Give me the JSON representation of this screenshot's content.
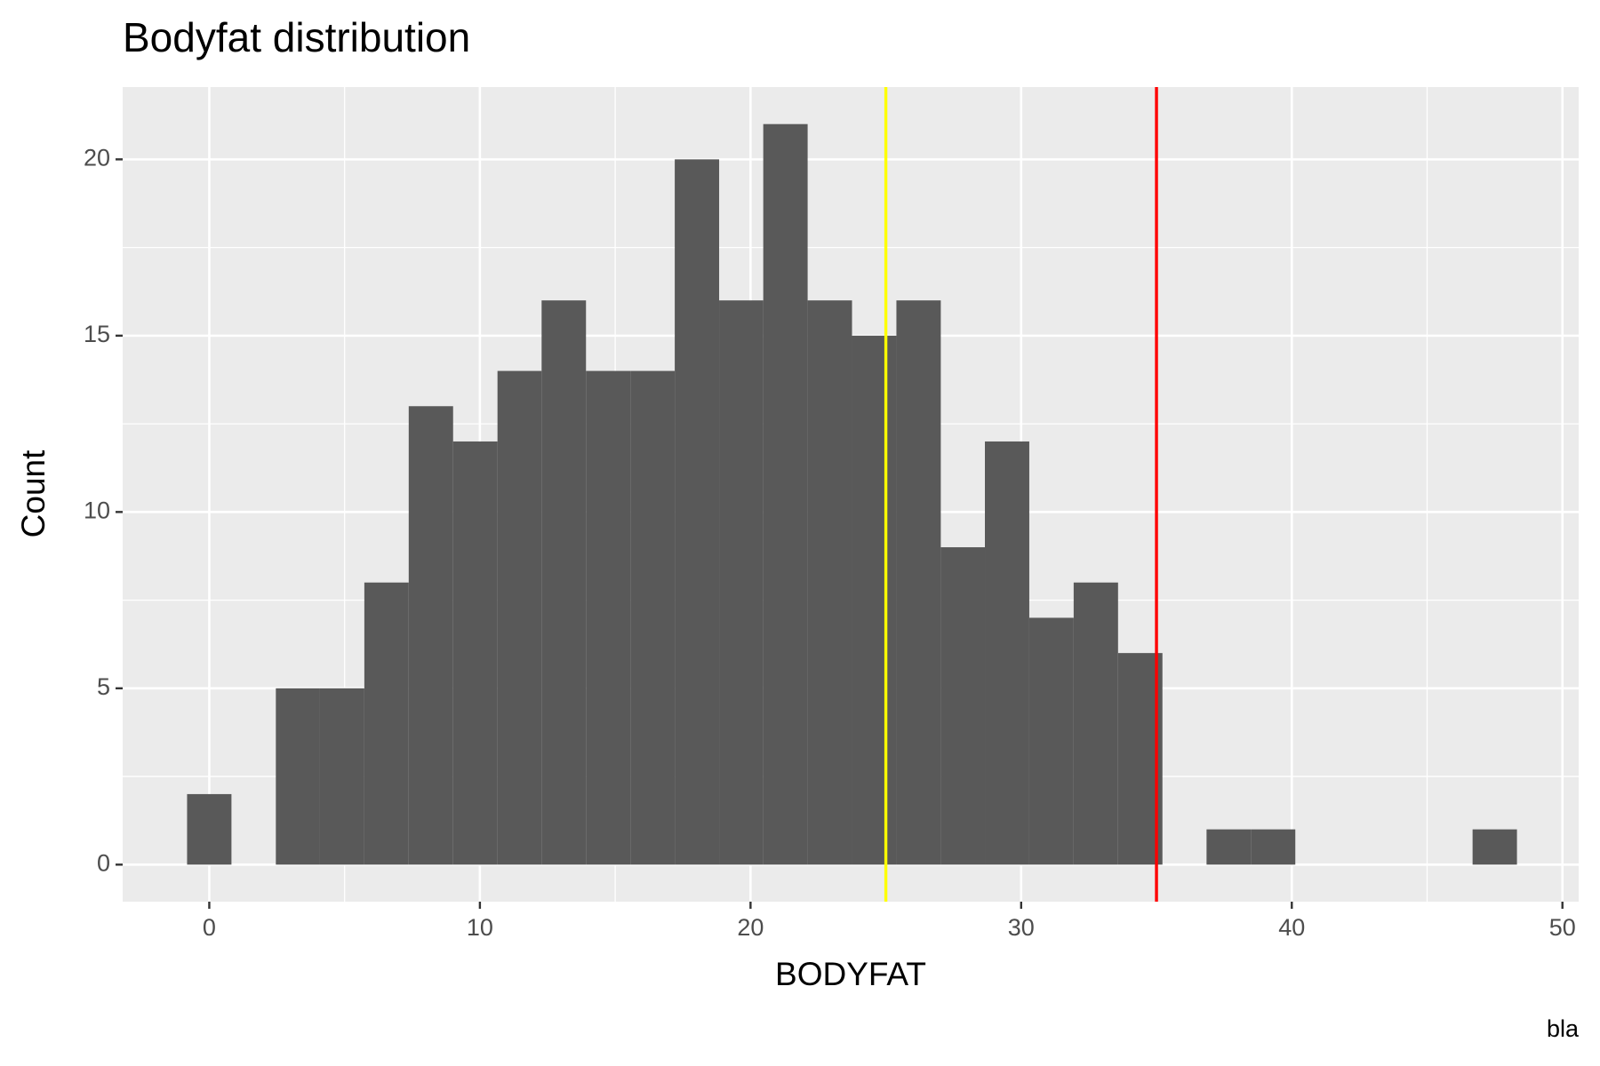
{
  "chart_data": {
    "type": "histogram",
    "title": "Bodyfat distribution",
    "x_label": "BODYFAT",
    "y_label": "Count",
    "caption": "bla",
    "bins": [
      -0.82,
      0.82,
      2.46,
      4.09,
      5.73,
      7.37,
      9.01,
      10.65,
      12.28,
      13.92,
      15.56,
      17.2,
      18.84,
      20.47,
      22.11,
      23.75,
      25.39,
      27.03,
      28.66,
      30.3,
      31.94,
      33.58,
      35.22,
      36.85,
      38.49,
      40.13,
      41.77,
      43.41,
      45.05,
      46.68,
      48.32
    ],
    "values": [
      2,
      0,
      5,
      5,
      8,
      13,
      12,
      14,
      16,
      14,
      14,
      20,
      16,
      21,
      16,
      15,
      16,
      9,
      12,
      7,
      8,
      6,
      0,
      1,
      1,
      0,
      0,
      0,
      0,
      1
    ],
    "color": "#595959",
    "vlines": [
      {
        "x": 25,
        "color": "#ffff00"
      },
      {
        "x": 35,
        "color": "#ff0000"
      }
    ],
    "xlim": [
      -3.2,
      50.6
    ],
    "ylim": [
      -1.05,
      22.05
    ],
    "xticks": [
      0,
      10,
      20,
      30,
      40,
      50
    ],
    "yticks": [
      0,
      5,
      10,
      15,
      20
    ],
    "grid": true
  }
}
